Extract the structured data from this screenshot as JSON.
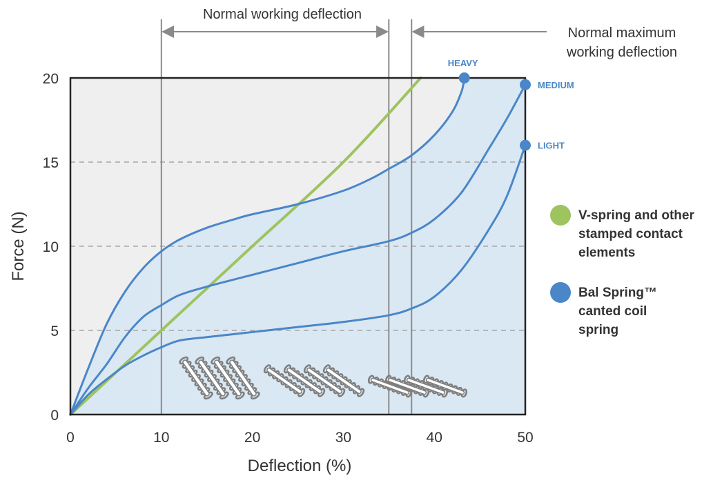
{
  "chart_data": {
    "type": "line",
    "xlabel": "Deflection (%)",
    "ylabel": "Force (N)",
    "xlim": [
      0,
      50
    ],
    "ylim": [
      0,
      20
    ],
    "x_ticks": [
      "0",
      "10",
      "20",
      "30",
      "40",
      "50"
    ],
    "y_ticks": [
      "0",
      "5",
      "10",
      "15",
      "20"
    ],
    "grid": "horizontal-dashed",
    "annotations": {
      "normal_working": {
        "text": "Normal working deflection",
        "x_from": 10,
        "x_to": 35
      },
      "normal_maximum": {
        "line1": "Normal maximum",
        "line2": "working deflection",
        "x": 37.5
      }
    },
    "series": [
      {
        "name": "V-spring and other stamped contact elements",
        "color": "#9dc45f",
        "points": [
          [
            0,
            0
          ],
          [
            10,
            5
          ],
          [
            20,
            10
          ],
          [
            30,
            15
          ],
          [
            38.5,
            20
          ]
        ]
      },
      {
        "name": "HEAVY",
        "color": "#4a86c8",
        "points": [
          [
            0,
            0
          ],
          [
            2,
            2.8
          ],
          [
            4,
            5.4
          ],
          [
            6,
            7.3
          ],
          [
            8,
            8.7
          ],
          [
            10,
            9.7
          ],
          [
            12,
            10.4
          ],
          [
            15,
            11.1
          ],
          [
            18,
            11.6
          ],
          [
            20,
            11.9
          ],
          [
            25,
            12.5
          ],
          [
            30,
            13.3
          ],
          [
            33,
            14.0
          ],
          [
            35,
            14.6
          ],
          [
            37.5,
            15.4
          ],
          [
            40,
            16.6
          ],
          [
            42,
            18.0
          ],
          [
            43,
            19.2
          ],
          [
            43.3,
            20
          ]
        ]
      },
      {
        "name": "MEDIUM",
        "color": "#4a86c8",
        "points": [
          [
            0,
            0
          ],
          [
            2,
            1.6
          ],
          [
            4,
            3.0
          ],
          [
            6,
            4.6
          ],
          [
            8,
            5.8
          ],
          [
            10,
            6.5
          ],
          [
            12,
            7.1
          ],
          [
            15,
            7.6
          ],
          [
            20,
            8.3
          ],
          [
            25,
            9.0
          ],
          [
            30,
            9.7
          ],
          [
            35,
            10.3
          ],
          [
            37.5,
            10.8
          ],
          [
            40,
            11.6
          ],
          [
            43,
            13.2
          ],
          [
            46,
            15.8
          ],
          [
            48,
            17.6
          ],
          [
            50,
            19.6
          ]
        ]
      },
      {
        "name": "LIGHT",
        "color": "#4a86c8",
        "points": [
          [
            0,
            0
          ],
          [
            2,
            1.2
          ],
          [
            4,
            2.1
          ],
          [
            6,
            2.9
          ],
          [
            8,
            3.5
          ],
          [
            10,
            4.0
          ],
          [
            12,
            4.4
          ],
          [
            15,
            4.6
          ],
          [
            20,
            4.9
          ],
          [
            25,
            5.2
          ],
          [
            30,
            5.5
          ],
          [
            35,
            5.9
          ],
          [
            37.5,
            6.3
          ],
          [
            40,
            7.0
          ],
          [
            43,
            8.6
          ],
          [
            46,
            11.0
          ],
          [
            48,
            13.0
          ],
          [
            50,
            16.0
          ]
        ]
      }
    ],
    "legend": {
      "position": "right",
      "items": [
        {
          "color": "#9dc45f",
          "lines": [
            "V-spring and other",
            "stamped contact",
            "elements"
          ]
        },
        {
          "color": "#4a86c8",
          "lines": [
            "Bal Spring™",
            "canted coil",
            "spring"
          ]
        }
      ]
    }
  },
  "colors": {
    "plot_bg": "#efeff0",
    "band_fill": "#dae8f3",
    "frame": "#222222",
    "vline": "#8a8a8a",
    "grid": "#a6a6a6",
    "coil": "#7f7f7f"
  }
}
